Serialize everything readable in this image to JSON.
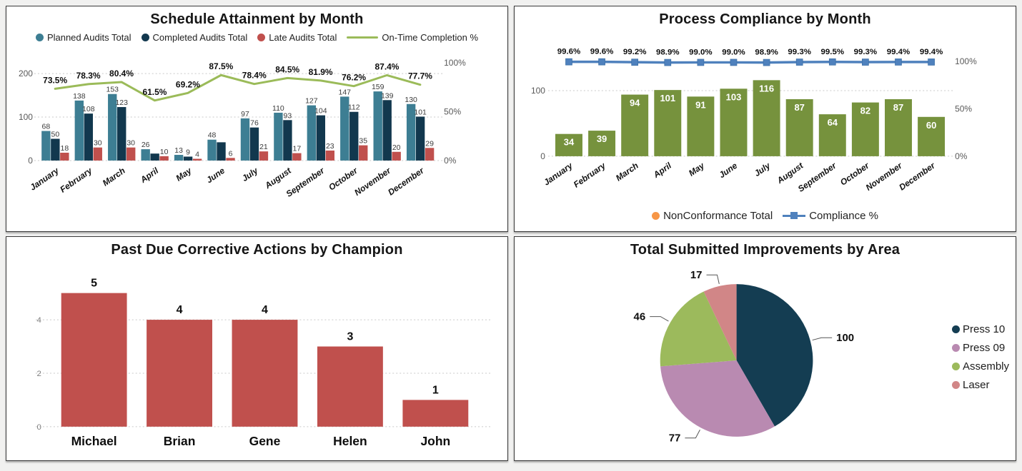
{
  "chart_data": [
    {
      "type": "grouped-bar-line-combo",
      "title": "Schedule Attainment by Month",
      "categories": [
        "January",
        "February",
        "March",
        "April",
        "May",
        "June",
        "July",
        "August",
        "September",
        "October",
        "November",
        "December"
      ],
      "series": [
        {
          "name": "Planned Audits Total",
          "color": "#3d7e93",
          "values": [
            68,
            138,
            153,
            26,
            13,
            48,
            97,
            110,
            127,
            147,
            159,
            130
          ]
        },
        {
          "name": "Completed Audits Total",
          "color": "#12384e",
          "values": [
            50,
            108,
            123,
            16,
            9,
            42,
            76,
            93,
            104,
            112,
            139,
            101
          ],
          "label_hidden_at": [
            3,
            5
          ]
        },
        {
          "name": "Late Audits Total",
          "color": "#c0504d",
          "values": [
            18,
            30,
            30,
            10,
            4,
            6,
            21,
            17,
            23,
            35,
            20,
            29
          ]
        }
      ],
      "line": {
        "name": "On-Time Completion %",
        "color": "#9bbb59",
        "values": [
          73.5,
          78.3,
          80.4,
          61.5,
          69.2,
          87.5,
          78.4,
          84.5,
          81.9,
          76.2,
          87.4,
          77.7
        ],
        "labels": [
          "73.5%",
          "78.3%",
          "80.4%",
          "61.5%",
          "69.2%",
          "87.5%",
          "78.4%",
          "84.5%",
          "81.9%",
          "76.2%",
          "87.4%",
          "77.7%"
        ]
      },
      "left_axis": {
        "ticks": [
          0,
          100,
          200
        ],
        "max": 200
      },
      "right_axis": {
        "ticks": [
          "0%",
          "50%",
          "100%"
        ],
        "max": 100
      },
      "legend_position": "top",
      "grid": true
    },
    {
      "type": "bar-line-combo",
      "title": "Process Compliance by Month",
      "categories": [
        "January",
        "February",
        "March",
        "April",
        "May",
        "June",
        "July",
        "August",
        "September",
        "October",
        "November",
        "December"
      ],
      "series": [
        {
          "name": "NonConformance Total",
          "color": "#76923d",
          "legend_color": "#f79646",
          "values": [
            34,
            39,
            94,
            101,
            91,
            103,
            116,
            87,
            64,
            82,
            87,
            60
          ],
          "value_label_color": "#ffffff"
        }
      ],
      "line": {
        "name": "Compliance %",
        "color": "#4f81bd",
        "marker": "square",
        "values": [
          99.6,
          99.6,
          99.2,
          98.9,
          99.0,
          99.0,
          98.9,
          99.3,
          99.5,
          99.3,
          99.4,
          99.4
        ],
        "labels": [
          "99.6%",
          "99.6%",
          "99.2%",
          "98.9%",
          "99.0%",
          "99.0%",
          "98.9%",
          "99.3%",
          "99.5%",
          "99.3%",
          "99.4%",
          "99.4%"
        ]
      },
      "left_axis": {
        "ticks": [
          0,
          100
        ],
        "max": 100
      },
      "right_axis": {
        "ticks": [
          "0%",
          "50%",
          "100%"
        ],
        "max": 100
      },
      "legend_position": "bottom",
      "grid": true
    },
    {
      "type": "bar",
      "title": "Past Due Corrective Actions by Champion",
      "categories": [
        "Michael",
        "Brian",
        "Gene",
        "Helen",
        "John"
      ],
      "values": [
        5,
        4,
        4,
        3,
        1
      ],
      "bar_color": "#c0504d",
      "left_axis": {
        "ticks": [
          0,
          2,
          4
        ],
        "max": 5
      },
      "grid": true
    },
    {
      "type": "pie",
      "title": "Total Submitted Improvements by Area",
      "slices": [
        {
          "label": "Press 10",
          "value": 100,
          "color": "#143d52"
        },
        {
          "label": "Press 09",
          "value": 77,
          "color": "#b98ab1"
        },
        {
          "label": "Assembly",
          "value": 46,
          "color": "#9cba5c"
        },
        {
          "label": "Laser",
          "value": 17,
          "color": "#d18687"
        }
      ],
      "legend_position": "right"
    }
  ]
}
